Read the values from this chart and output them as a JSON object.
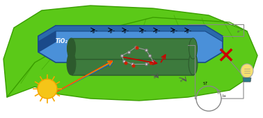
{
  "bg_color": "#ffffff",
  "leaf_color": "#5bc918",
  "leaf_dark": "#3a9e00",
  "plate_top": "#4a90d9",
  "plate_side": "#2a6aaa",
  "plate_edge": "#1a4a8a",
  "tio2_text": "TiO₂",
  "cylinder_dark": "#2d5a2d",
  "cylinder_mid": "#3d7a3d",
  "electron_color": "#555555",
  "sun_color": "#f5c518",
  "sun_ray": "#f5a500",
  "arrow_red": "#cc0000",
  "arrow_blue": "#0000cc",
  "arrow_green": "#00aa00",
  "arrow_yellow": "#ddaa00",
  "x_color": "#cc0000",
  "bulb_yellow": "#f5e070",
  "bulb_base": "#2a7a8a",
  "circle_color": "#888888",
  "figsize": [
    3.78,
    1.7
  ],
  "dpi": 100
}
